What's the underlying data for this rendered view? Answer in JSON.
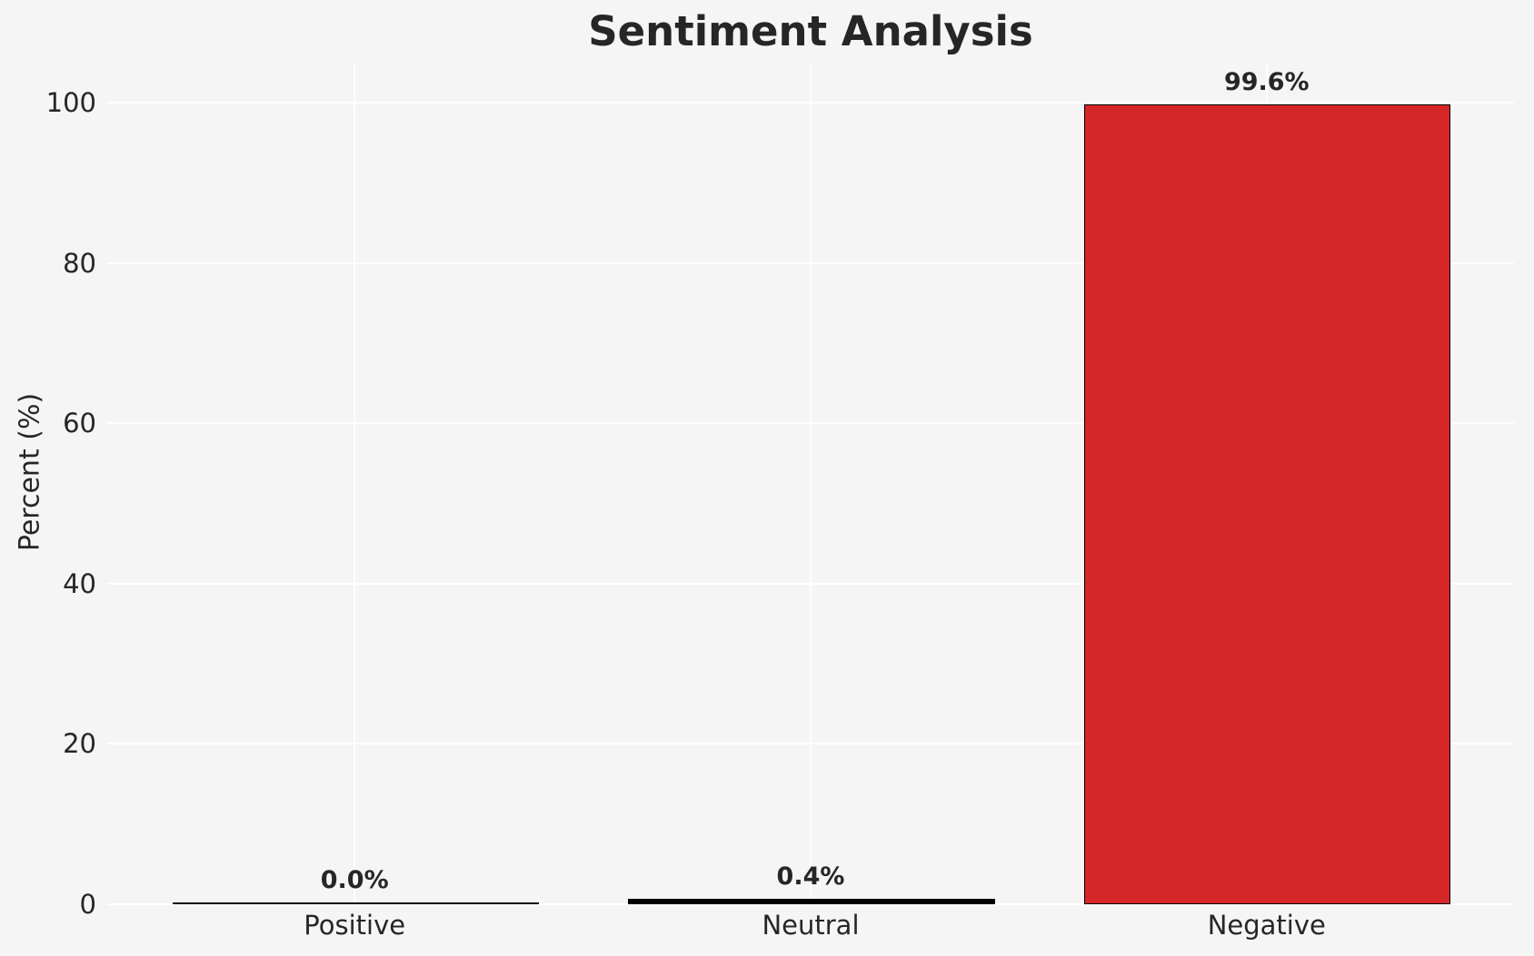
{
  "chart_data": {
    "type": "bar",
    "title": "Sentiment Analysis",
    "xlabel": "",
    "ylabel": "Percent (%)",
    "categories": [
      "Positive",
      "Neutral",
      "Negative"
    ],
    "values": [
      0.0,
      0.4,
      99.6
    ],
    "value_labels": [
      "0.0%",
      "0.4%",
      "99.6%"
    ],
    "bar_colors": [
      "#000000",
      "#000000",
      "#d62728"
    ],
    "bar_edge_color": "#000000",
    "ylim": [
      0,
      105
    ],
    "yticks": [
      0,
      20,
      40,
      60,
      80,
      100
    ],
    "grid": true,
    "gridline_color": "#ffffff",
    "background_color": "#f5f5f6",
    "text_color": "#262626",
    "legend": null
  }
}
